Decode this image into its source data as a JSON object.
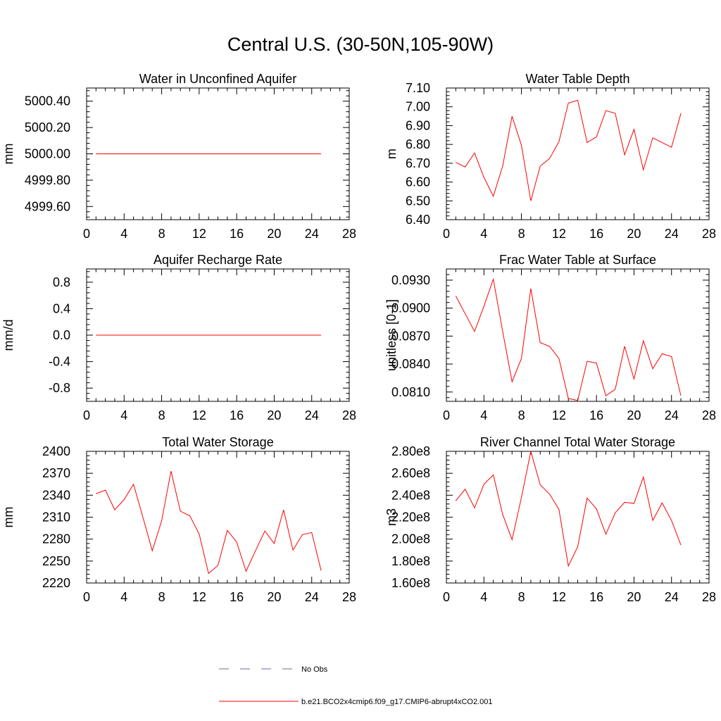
{
  "title": "Central U.S. (30-50N,105-90W)",
  "chart_data": [
    {
      "type": "line",
      "title": "Water in Unconfined Aquifer",
      "ylabel": "mm",
      "xlim": [
        0,
        28
      ],
      "ylim": [
        4999.5,
        5000.5
      ],
      "x_ticks": [
        0,
        4,
        8,
        12,
        16,
        20,
        24,
        28
      ],
      "x_tick_labels": [
        "0",
        "4",
        "8",
        "12",
        "16",
        "20",
        "24",
        "28"
      ],
      "y_ticks": [
        4999.6,
        4999.8,
        5000.0,
        5000.2,
        5000.4
      ],
      "y_tick_labels": [
        "4999.60",
        "4999.80",
        "5000.00",
        "5000.20",
        "5000.40"
      ],
      "series": [
        {
          "color": "#ff0000",
          "x": [
            1,
            2,
            3,
            4,
            5,
            6,
            7,
            8,
            9,
            10,
            11,
            12,
            13,
            14,
            15,
            16,
            17,
            18,
            19,
            20,
            21,
            22,
            23,
            24,
            25
          ],
          "values": [
            5000,
            5000,
            5000,
            5000,
            5000,
            5000,
            5000,
            5000,
            5000,
            5000,
            5000,
            5000,
            5000,
            5000,
            5000,
            5000,
            5000,
            5000,
            5000,
            5000,
            5000,
            5000,
            5000,
            5000,
            5000
          ]
        }
      ]
    },
    {
      "type": "line",
      "title": "Water Table Depth",
      "ylabel": "m",
      "xlim": [
        0,
        28
      ],
      "ylim": [
        6.4,
        7.1
      ],
      "x_ticks": [
        0,
        4,
        8,
        12,
        16,
        20,
        24,
        28
      ],
      "x_tick_labels": [
        "0",
        "4",
        "8",
        "12",
        "16",
        "20",
        "24",
        "28"
      ],
      "y_ticks": [
        6.4,
        6.5,
        6.6,
        6.7,
        6.8,
        6.9,
        7.0,
        7.1
      ],
      "y_tick_labels": [
        "6.40",
        "6.50",
        "6.60",
        "6.70",
        "6.80",
        "6.90",
        "7.00",
        "7.10"
      ],
      "series": [
        {
          "color": "#ff0000",
          "x": [
            1,
            2,
            3,
            4,
            5,
            6,
            7,
            8,
            9,
            10,
            11,
            12,
            13,
            14,
            15,
            16,
            17,
            18,
            19,
            20,
            21,
            22,
            23,
            24,
            25
          ],
          "values": [
            6.705,
            6.68,
            6.755,
            6.625,
            6.525,
            6.685,
            6.95,
            6.795,
            6.5,
            6.685,
            6.725,
            6.815,
            7.02,
            7.035,
            6.81,
            6.84,
            6.98,
            6.965,
            6.745,
            6.88,
            6.665,
            6.835,
            6.81,
            6.785,
            6.965
          ]
        }
      ]
    },
    {
      "type": "line",
      "title": "Aquifer Recharge Rate",
      "ylabel": "mm/d",
      "xlim": [
        0,
        28
      ],
      "ylim": [
        -1,
        1
      ],
      "x_ticks": [
        0,
        4,
        8,
        12,
        16,
        20,
        24,
        28
      ],
      "x_tick_labels": [
        "0",
        "4",
        "8",
        "12",
        "16",
        "20",
        "24",
        "28"
      ],
      "y_ticks": [
        -0.8,
        -0.4,
        0.0,
        0.4,
        0.8
      ],
      "y_tick_labels": [
        "-0.8",
        "-0.4",
        "0.0",
        "0.4",
        "0.8"
      ],
      "series": [
        {
          "color": "#ff0000",
          "x": [
            1,
            2,
            3,
            4,
            5,
            6,
            7,
            8,
            9,
            10,
            11,
            12,
            13,
            14,
            15,
            16,
            17,
            18,
            19,
            20,
            21,
            22,
            23,
            24,
            25
          ],
          "values": [
            0,
            0,
            0,
            0,
            0,
            0,
            0,
            0,
            0,
            0,
            0,
            0,
            0,
            0,
            0,
            0,
            0,
            0,
            0,
            0,
            0,
            0,
            0,
            0,
            0
          ]
        }
      ]
    },
    {
      "type": "line",
      "title": "Frac Water Table at Surface",
      "ylabel": "unitless [0-1]",
      "xlim": [
        0,
        28
      ],
      "ylim": [
        0.08,
        0.0942
      ],
      "x_ticks": [
        0,
        4,
        8,
        12,
        16,
        20,
        24,
        28
      ],
      "x_tick_labels": [
        "0",
        "4",
        "8",
        "12",
        "16",
        "20",
        "24",
        "28"
      ],
      "y_ticks": [
        0.081,
        0.084,
        0.087,
        0.09,
        0.093
      ],
      "y_tick_labels": [
        "0.0810",
        "0.0840",
        "0.0870",
        "0.0900",
        "0.0930"
      ],
      "series": [
        {
          "color": "#ff0000",
          "x": [
            1,
            2,
            3,
            4,
            5,
            6,
            7,
            8,
            9,
            10,
            11,
            12,
            13,
            14,
            15,
            16,
            17,
            18,
            19,
            20,
            21,
            22,
            23,
            24,
            25
          ],
          "values": [
            0.0913,
            0.0894,
            0.0875,
            0.0902,
            0.0931,
            0.0875,
            0.0821,
            0.0846,
            0.0921,
            0.0863,
            0.0859,
            0.0846,
            0.0803,
            0.0801,
            0.0843,
            0.0841,
            0.0806,
            0.0813,
            0.0859,
            0.0824,
            0.0865,
            0.0835,
            0.0851,
            0.0848,
            0.0806
          ]
        }
      ]
    },
    {
      "type": "line",
      "title": "Total Water Storage",
      "ylabel": "mm",
      "xlim": [
        0,
        28
      ],
      "ylim": [
        2220,
        2400
      ],
      "x_ticks": [
        0,
        4,
        8,
        12,
        16,
        20,
        24,
        28
      ],
      "x_tick_labels": [
        "0",
        "4",
        "8",
        "12",
        "16",
        "20",
        "24",
        "28"
      ],
      "y_ticks": [
        2220,
        2250,
        2280,
        2310,
        2340,
        2370,
        2400
      ],
      "y_tick_labels": [
        "2220",
        "2250",
        "2280",
        "2310",
        "2340",
        "2370",
        "2400"
      ],
      "series": [
        {
          "color": "#ff0000",
          "x": [
            1,
            2,
            3,
            4,
            5,
            6,
            7,
            8,
            9,
            10,
            11,
            12,
            13,
            14,
            15,
            16,
            17,
            18,
            19,
            20,
            21,
            22,
            23,
            24,
            25
          ],
          "values": [
            2342,
            2347,
            2320,
            2334,
            2355,
            2310,
            2264,
            2305,
            2373,
            2318,
            2312,
            2287,
            2233,
            2244,
            2292,
            2276,
            2236,
            2264,
            2291,
            2274,
            2320,
            2265,
            2286,
            2289,
            2237
          ]
        }
      ]
    },
    {
      "type": "line",
      "title": "River Channel Total Water Storage",
      "ylabel": "m3",
      "xlim": [
        0,
        28
      ],
      "ylim": [
        160000000,
        280000000
      ],
      "x_ticks": [
        0,
        4,
        8,
        12,
        16,
        20,
        24,
        28
      ],
      "x_tick_labels": [
        "0",
        "4",
        "8",
        "12",
        "16",
        "20",
        "24",
        "28"
      ],
      "y_ticks": [
        160000000,
        180000000,
        200000000,
        220000000,
        240000000,
        260000000,
        280000000
      ],
      "y_tick_labels": [
        "1.60e8",
        "1.80e8",
        "2.00e8",
        "2.20e8",
        "2.40e8",
        "2.60e8",
        "2.80e8"
      ],
      "series": [
        {
          "color": "#ff0000",
          "x": [
            1,
            2,
            3,
            4,
            5,
            6,
            7,
            8,
            9,
            10,
            11,
            12,
            13,
            14,
            15,
            16,
            17,
            18,
            19,
            20,
            21,
            22,
            23,
            24,
            25
          ],
          "values": [
            235000000,
            245500000,
            228500000,
            250000000,
            258500000,
            222500000,
            199500000,
            238000000,
            280000000,
            249500000,
            241000000,
            227000000,
            175500000,
            193000000,
            237500000,
            227500000,
            204500000,
            224000000,
            233500000,
            232500000,
            256500000,
            217000000,
            233000000,
            217000000,
            194500000
          ]
        }
      ]
    }
  ],
  "legend": {
    "entries": [
      {
        "label": "No Obs",
        "color": "#6a6aa8",
        "style": "dashed"
      },
      {
        "label": "b.e21.BCO2x4cmip6.f09_g17.CMIP6-abrupt4xCO2.001",
        "color": "#ff0000",
        "style": "solid"
      }
    ]
  }
}
